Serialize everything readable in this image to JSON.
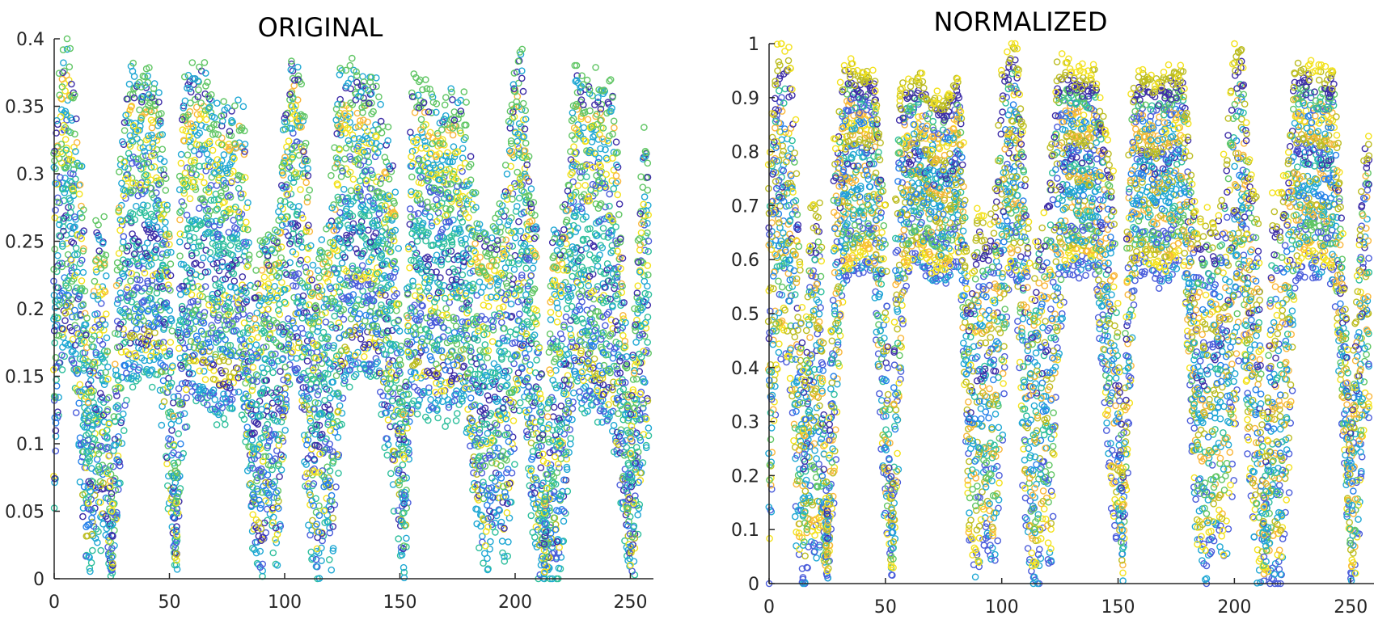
{
  "chart_data": [
    {
      "type": "scatter",
      "title": "ORIGINAL",
      "xlabel": "",
      "ylabel": "",
      "xlim": [
        0,
        260
      ],
      "ylim": [
        0,
        0.4
      ],
      "xticks": [
        0,
        50,
        100,
        150,
        200,
        250
      ],
      "yticks": [
        0,
        0.05,
        0.1,
        0.15,
        0.2,
        0.25,
        0.3,
        0.35,
        0.4
      ],
      "xtick_labels": [
        "0",
        "50",
        "100",
        "150",
        "200",
        "250"
      ],
      "ytick_labels": [
        "0",
        "0.05",
        "0.1",
        "0.15",
        "0.2",
        "0.25",
        "0.3",
        "0.35",
        "0.4"
      ],
      "grid": false,
      "marker": "open-circle",
      "series_colormap": [
        "#f3e21d",
        "#f9b73b",
        "#bcbd23",
        "#61c665",
        "#2fbf9d",
        "#20a8d4",
        "#2681ea",
        "#4b5ddb",
        "#3e2ea8"
      ],
      "series_count": 40,
      "envelope": {
        "x": [
          0,
          3,
          6,
          9,
          12,
          15,
          18,
          22,
          25,
          28,
          32,
          38,
          45,
          50,
          53,
          55,
          58,
          64,
          70,
          76,
          82,
          86,
          90,
          93,
          97,
          100,
          103,
          106,
          110,
          113,
          116,
          118,
          121,
          124,
          128,
          133,
          140,
          148,
          152,
          155,
          157,
          160,
          166,
          172,
          178,
          184,
          188,
          192,
          196,
          200,
          203,
          206,
          210,
          213,
          216,
          220,
          223,
          226,
          230,
          236,
          243,
          250,
          252,
          256,
          258
        ],
        "max": [
          0.32,
          0.39,
          0.4,
          0.36,
          0.3,
          0.14,
          0.26,
          0.26,
          0.05,
          0.3,
          0.38,
          0.37,
          0.37,
          0.27,
          0.05,
          0.36,
          0.37,
          0.38,
          0.35,
          0.35,
          0.36,
          0.2,
          0.26,
          0.25,
          0.26,
          0.35,
          0.39,
          0.39,
          0.3,
          0.2,
          0.26,
          0.25,
          0.3,
          0.38,
          0.38,
          0.37,
          0.37,
          0.3,
          0.1,
          0.37,
          0.37,
          0.37,
          0.35,
          0.36,
          0.36,
          0.26,
          0.26,
          0.26,
          0.3,
          0.39,
          0.39,
          0.3,
          0.26,
          0.05,
          0.26,
          0.26,
          0.3,
          0.38,
          0.37,
          0.37,
          0.36,
          0.12,
          0.2,
          0.34,
          0.3
        ],
        "min": [
          0.05,
          0.16,
          0.17,
          0.15,
          0.03,
          0.0,
          0.03,
          0.03,
          0.0,
          0.06,
          0.15,
          0.15,
          0.15,
          0.05,
          0.0,
          0.08,
          0.13,
          0.13,
          0.12,
          0.12,
          0.13,
          0.03,
          0.0,
          0.05,
          0.0,
          0.1,
          0.15,
          0.15,
          0.05,
          0.0,
          0.0,
          0.05,
          0.0,
          0.12,
          0.15,
          0.15,
          0.15,
          0.05,
          0.0,
          0.12,
          0.13,
          0.13,
          0.12,
          0.12,
          0.13,
          0.03,
          0.0,
          0.05,
          0.0,
          0.1,
          0.15,
          0.08,
          0.0,
          0.0,
          0.0,
          0.0,
          0.08,
          0.14,
          0.13,
          0.12,
          0.1,
          0.0,
          0.0,
          0.1,
          0.1
        ]
      }
    },
    {
      "type": "scatter",
      "title": "NORMALIZED",
      "xlabel": "",
      "ylabel": "",
      "xlim": [
        0,
        260
      ],
      "ylim": [
        0,
        1
      ],
      "xticks": [
        0,
        50,
        100,
        150,
        200,
        250
      ],
      "yticks": [
        0,
        0.1,
        0.2,
        0.3,
        0.4,
        0.5,
        0.6,
        0.7,
        0.8,
        0.9,
        1
      ],
      "xtick_labels": [
        "0",
        "50",
        "100",
        "150",
        "200",
        "250"
      ],
      "ytick_labels": [
        "0",
        "0.1",
        "0.2",
        "0.3",
        "0.4",
        "0.5",
        "0.6",
        "0.7",
        "0.8",
        "0.9",
        "1"
      ],
      "grid": false,
      "marker": "open-circle",
      "series_colormap": [
        "#f3e21d",
        "#f9b73b",
        "#bcbd23",
        "#61c665",
        "#2fbf9d",
        "#20a8d4",
        "#2681ea",
        "#4b5ddb",
        "#3e2ea8"
      ],
      "series_count": 40,
      "envelope": {
        "x": [
          0,
          3,
          6,
          9,
          12,
          15,
          18,
          22,
          25,
          28,
          32,
          38,
          45,
          50,
          53,
          55,
          58,
          64,
          70,
          76,
          82,
          86,
          90,
          93,
          97,
          100,
          103,
          106,
          110,
          113,
          116,
          118,
          121,
          124,
          128,
          133,
          140,
          148,
          152,
          155,
          157,
          160,
          166,
          172,
          178,
          184,
          188,
          192,
          196,
          200,
          203,
          206,
          210,
          213,
          216,
          220,
          223,
          226,
          230,
          236,
          243,
          250,
          252,
          256,
          258
        ],
        "max": [
          0.75,
          0.97,
          1.0,
          0.98,
          0.8,
          0.35,
          0.7,
          0.7,
          0.1,
          0.8,
          0.97,
          0.95,
          0.95,
          0.7,
          0.12,
          0.9,
          0.93,
          0.95,
          0.9,
          0.9,
          0.95,
          0.5,
          0.7,
          0.65,
          0.7,
          0.95,
          0.99,
          1.0,
          0.8,
          0.5,
          0.7,
          0.65,
          0.8,
          0.97,
          0.96,
          0.95,
          0.95,
          0.75,
          0.2,
          0.9,
          0.93,
          0.95,
          0.93,
          0.95,
          0.95,
          0.65,
          0.7,
          0.65,
          0.8,
          0.98,
          1.0,
          0.8,
          0.7,
          0.15,
          0.7,
          0.7,
          0.8,
          0.97,
          0.96,
          0.95,
          0.95,
          0.3,
          0.5,
          0.85,
          0.8
        ],
        "min": [
          0.02,
          0.35,
          0.45,
          0.35,
          0.05,
          0.0,
          0.05,
          0.05,
          0.0,
          0.15,
          0.55,
          0.58,
          0.58,
          0.1,
          0.0,
          0.15,
          0.55,
          0.6,
          0.56,
          0.56,
          0.6,
          0.05,
          0.0,
          0.1,
          0.0,
          0.25,
          0.55,
          0.6,
          0.1,
          0.0,
          0.0,
          0.1,
          0.0,
          0.4,
          0.58,
          0.58,
          0.58,
          0.1,
          0.0,
          0.3,
          0.55,
          0.58,
          0.56,
          0.56,
          0.6,
          0.05,
          0.0,
          0.1,
          0.0,
          0.25,
          0.58,
          0.2,
          0.0,
          0.0,
          0.0,
          0.0,
          0.15,
          0.55,
          0.58,
          0.58,
          0.55,
          0.0,
          0.0,
          0.3,
          0.3
        ]
      }
    }
  ]
}
